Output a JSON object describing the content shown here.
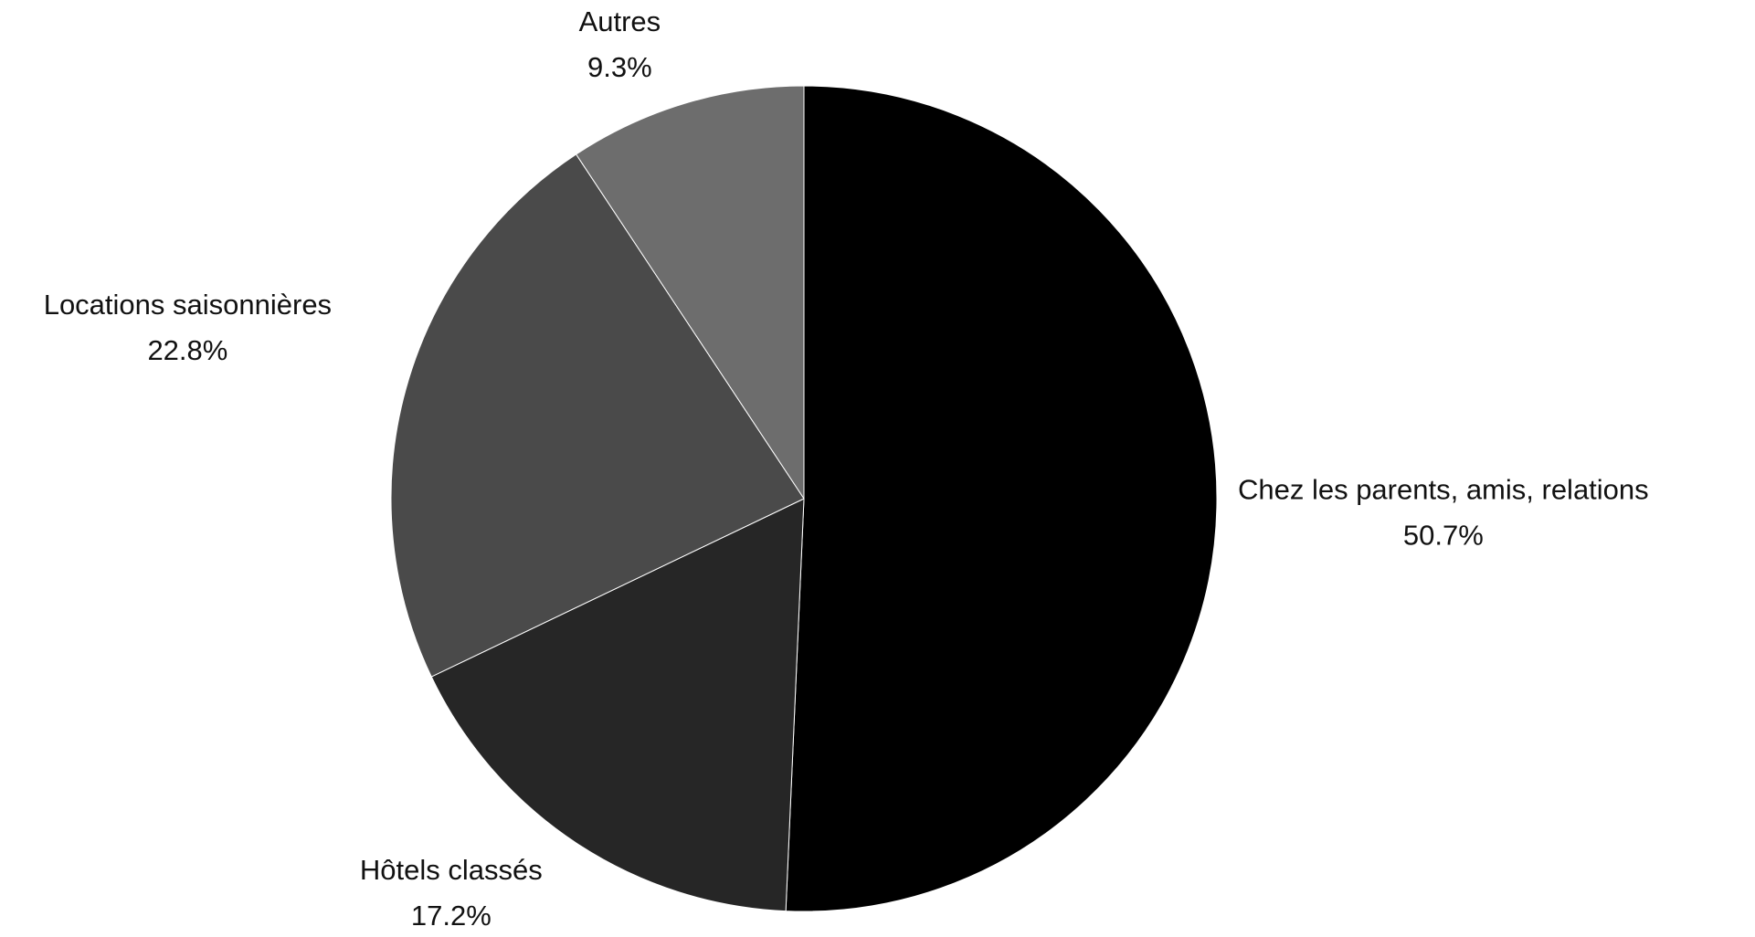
{
  "chart_data": {
    "type": "pie",
    "start_angle_deg": 0,
    "direction": "clockwise",
    "slices": [
      {
        "label": "Chez les parents, amis, relations",
        "value": 50.7,
        "value_label": "50.7%",
        "color": "#000000"
      },
      {
        "label": "Hôtels classés",
        "value": 17.2,
        "value_label": "17.2%",
        "color": "#262626"
      },
      {
        "label": "Locations saisonnières",
        "value": 22.8,
        "value_label": "22.8%",
        "color": "#4a4a4a"
      },
      {
        "label": "Autres",
        "value": 9.3,
        "value_label": "9.3%",
        "color": "#6d6d6d"
      }
    ]
  }
}
